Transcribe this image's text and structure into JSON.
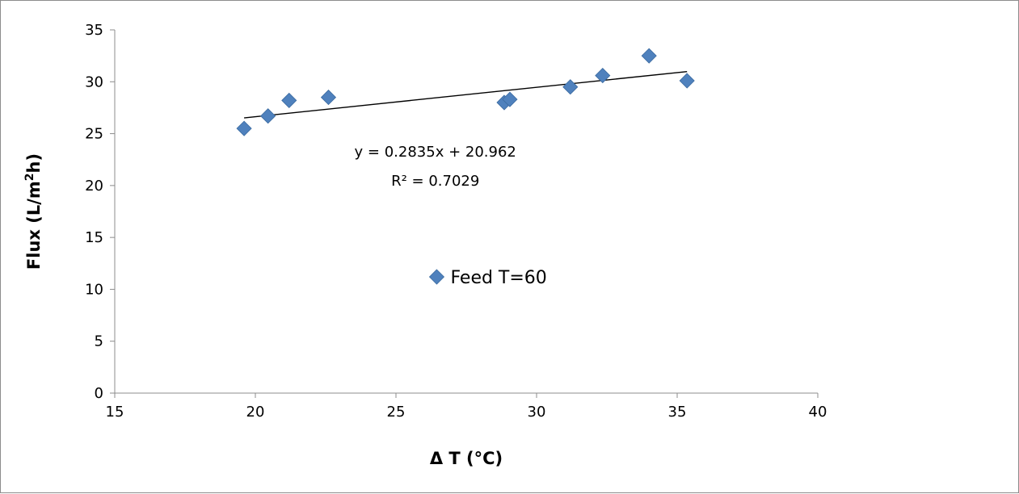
{
  "chart_data": {
    "type": "scatter",
    "xlabel": "Δ T (°C)",
    "ylabel_parts": [
      "Flux (L/m",
      "2",
      "h)"
    ],
    "xlim": [
      15,
      40
    ],
    "ylim": [
      0,
      35
    ],
    "x_ticks": [
      15,
      20,
      25,
      30,
      35,
      40
    ],
    "y_ticks": [
      0,
      5,
      10,
      15,
      20,
      25,
      30,
      35
    ],
    "series": [
      {
        "name": "Feed T=60",
        "color": "#4f81bd",
        "marker": "diamond",
        "x": [
          19.6,
          20.45,
          21.2,
          22.6,
          28.85,
          29.05,
          31.2,
          32.35,
          34.0,
          35.35
        ],
        "y": [
          25.5,
          26.7,
          28.2,
          28.5,
          28.0,
          28.3,
          29.5,
          30.6,
          32.5,
          30.1
        ]
      }
    ],
    "trendline": {
      "type": "linear",
      "slope": 0.2835,
      "intercept": 20.962,
      "x_range": [
        19.6,
        35.35
      ],
      "equation_text": "y = 0.2835x + 20.962",
      "r2_text": "R² = 0.7029"
    },
    "legend": {
      "position": "center",
      "entries": [
        "Feed T=60"
      ]
    },
    "grid": false
  }
}
